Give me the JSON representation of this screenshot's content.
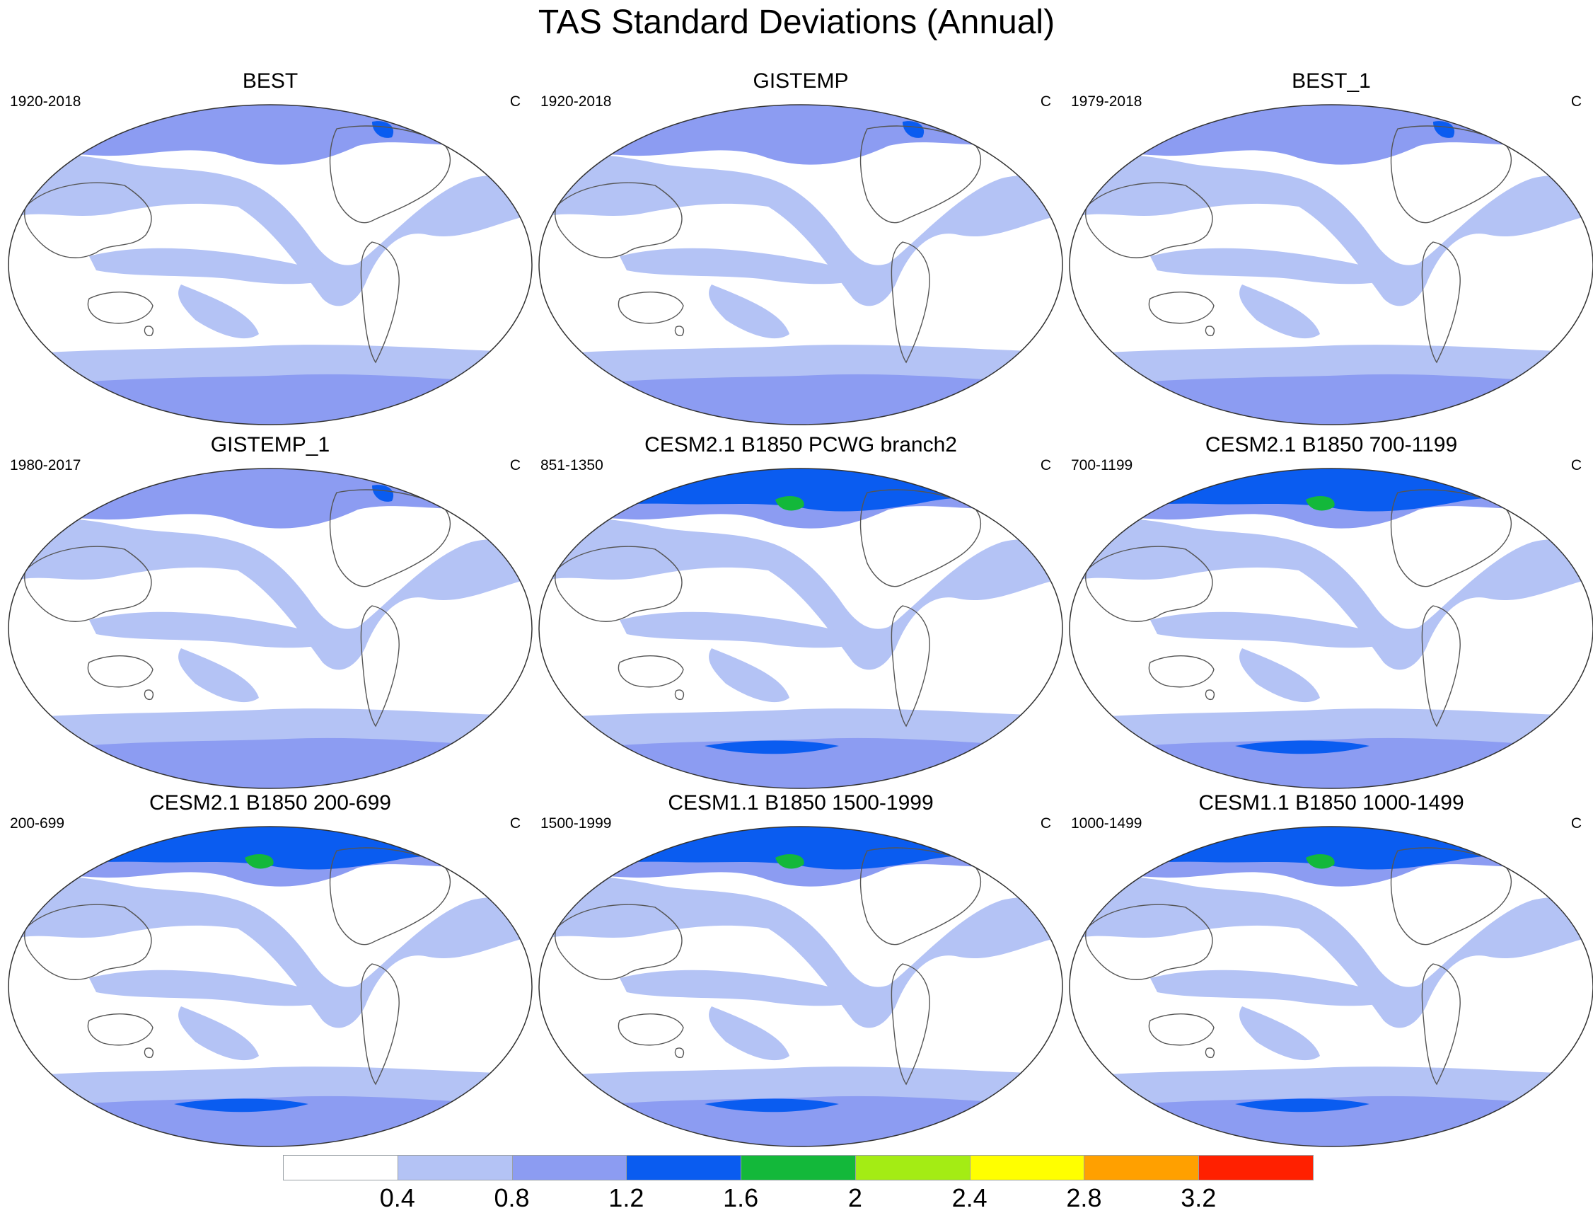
{
  "figure": {
    "title": "TAS Standard Deviations (Annual)"
  },
  "chart_data": {
    "type": "heatmap",
    "title": "TAS Standard Deviations (Annual)",
    "units": "C",
    "colorbar": {
      "levels": [
        0.4,
        0.8,
        1.2,
        1.6,
        2,
        2.4,
        2.8,
        3.2
      ],
      "tick_labels": [
        "0.4",
        "0.8",
        "1.2",
        "1.6",
        "2",
        "2.4",
        "2.8",
        "3.2"
      ],
      "colors": [
        "#ffffff",
        "#b4c3f5",
        "#8c9cf2",
        "#0a5cf0",
        "#13b83a",
        "#a4ec14",
        "#ffff00",
        "#ffa000",
        "#ff2000"
      ]
    },
    "panels": [
      {
        "title": "BEST",
        "period": "1920-2018",
        "units": "C"
      },
      {
        "title": "GISTEMP",
        "period": "1920-2018",
        "units": "C"
      },
      {
        "title": "BEST_1",
        "period": "1979-2018",
        "units": "C"
      },
      {
        "title": "GISTEMP_1",
        "period": "1980-2017",
        "units": "C"
      },
      {
        "title": "CESM2.1 B1850 PCWG branch2",
        "period": "851-1350",
        "units": "C"
      },
      {
        "title": "CESM2.1 B1850 700-1199",
        "period": "700-1199",
        "units": "C"
      },
      {
        "title": "CESM2.1 B1850 200-699",
        "period": "200-699",
        "units": "C"
      },
      {
        "title": "CESM1.1 B1850 1500-1999",
        "period": "1500-1999",
        "units": "C"
      },
      {
        "title": "CESM1.1 B1850 1000-1499",
        "period": "1000-1499",
        "units": "C"
      }
    ]
  }
}
